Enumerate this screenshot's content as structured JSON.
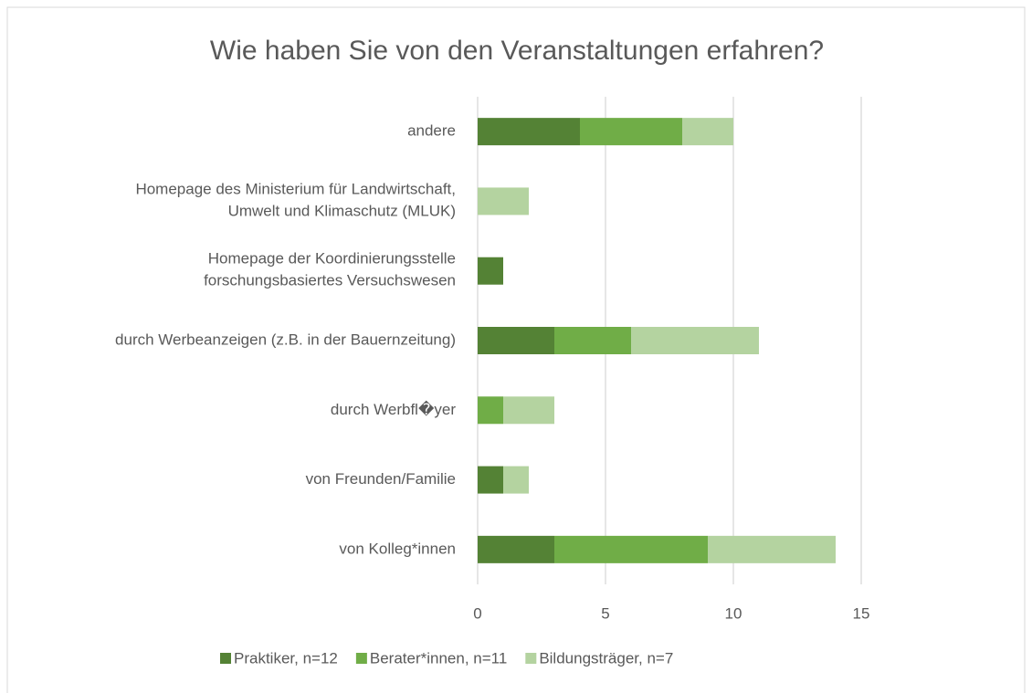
{
  "chart_data": {
    "type": "stacked_barh",
    "title": "Wie haben Sie von den Veranstaltungen erfahren?",
    "categories": [
      "andere",
      "Homepage des Ministerium für Landwirtschaft,\nUmwelt und Klimaschutz (MLUK)",
      "Homepage der Koordinierungsstelle\nforschungsbasiertes Versuchswesen",
      "durch Werbeanzeigen (z.B. in der Bauernzeitung)",
      "durch Werbfl�yer",
      "von Freunden/Familie",
      "von Kolleg*innen"
    ],
    "series": [
      {
        "name": "Praktiker, n=12",
        "color": "#548235",
        "values": [
          4,
          0,
          1,
          3,
          0,
          1,
          3
        ]
      },
      {
        "name": "Berater*innen, n=11",
        "color": "#70ad47",
        "values": [
          4,
          0,
          0,
          3,
          1,
          0,
          6
        ]
      },
      {
        "name": "Bildungsträger, n=7",
        "color": "#b4d3a0",
        "values": [
          2,
          2,
          0,
          5,
          2,
          1,
          5
        ]
      }
    ],
    "xlim": [
      0,
      15
    ],
    "xticks": [
      0,
      5,
      10,
      15
    ],
    "grid": true,
    "legend": "bottom"
  }
}
